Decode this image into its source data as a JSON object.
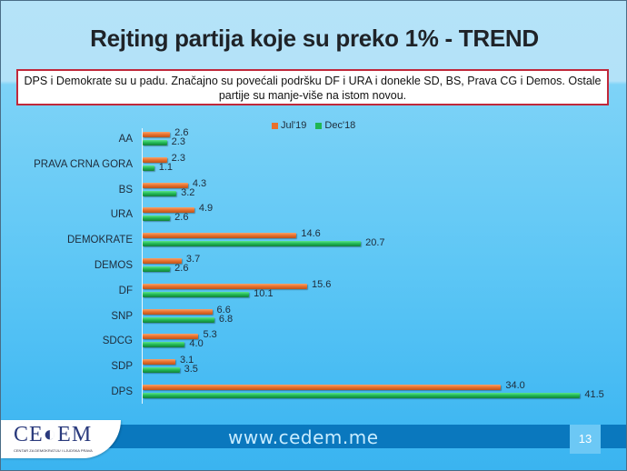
{
  "slide": {
    "title": "Rejting partija koje su preko 1% - TREND",
    "note": "DPS i Demokrate su u padu. Značajno su povećali podršku DF i URA i donekle SD, BS, Prava CG i Demos. Ostale partije su manje-više na istom novou.",
    "footer_url": "www.cedem.me",
    "page_number": "13",
    "logo": {
      "text": "CE◐EM",
      "subtitle": "CENTAR ZA DEMOKRATIJU I LJUDSKA PRAVA"
    }
  },
  "colors": {
    "jul19": "#e8702c",
    "dec18": "#1fb653",
    "note_border": "#c0283a"
  },
  "chart_data": {
    "type": "bar",
    "orientation": "horizontal",
    "title": "Rejting partija koje su preko 1% - TREND",
    "xlabel": "",
    "ylabel": "",
    "legend_position": "top-right",
    "grid": false,
    "categories": [
      "AA",
      "PRAVA CRNA GORA",
      "BS",
      "URA",
      "DEMOKRATE",
      "DEMOS",
      "DF",
      "SNP",
      "SDCG",
      "SDP",
      "DPS"
    ],
    "series": [
      {
        "name": "Jul'19",
        "values": [
          2.6,
          2.3,
          4.3,
          4.9,
          14.6,
          3.7,
          15.6,
          6.6,
          5.3,
          3.1,
          34.0
        ],
        "labels": [
          "2.6",
          "2.3",
          "4.3",
          "4.9",
          "14.6",
          "3.7",
          "15.6",
          "6.6",
          "5.3",
          "3.1",
          "34.0"
        ]
      },
      {
        "name": "Dec'18",
        "values": [
          2.3,
          1.1,
          3.2,
          2.6,
          20.7,
          2.6,
          10.1,
          6.8,
          4.0,
          3.5,
          41.5
        ],
        "labels": [
          "2.3",
          "1.1",
          "3.2",
          "2.6",
          "20.7",
          "2.6",
          "10.1",
          "6.8",
          "4.0",
          "3.5",
          "41.5"
        ]
      }
    ]
  }
}
